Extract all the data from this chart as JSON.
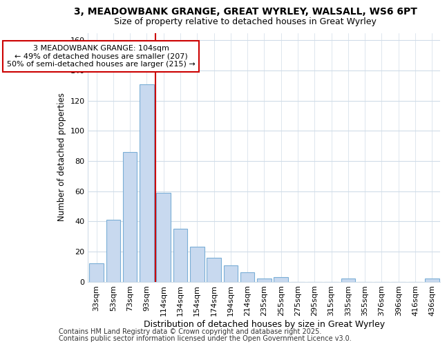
{
  "title": "3, MEADOWBANK GRANGE, GREAT WYRLEY, WALSALL, WS6 6PT",
  "subtitle": "Size of property relative to detached houses in Great Wyrley",
  "xlabel": "Distribution of detached houses by size in Great Wyrley",
  "ylabel": "Number of detached properties",
  "categories": [
    "33sqm",
    "53sqm",
    "73sqm",
    "93sqm",
    "114sqm",
    "134sqm",
    "154sqm",
    "174sqm",
    "194sqm",
    "214sqm",
    "235sqm",
    "255sqm",
    "275sqm",
    "295sqm",
    "315sqm",
    "335sqm",
    "355sqm",
    "376sqm",
    "396sqm",
    "416sqm",
    "436sqm"
  ],
  "values": [
    12,
    41,
    86,
    131,
    59,
    35,
    23,
    16,
    11,
    6,
    2,
    3,
    0,
    0,
    0,
    2,
    0,
    0,
    0,
    0,
    2
  ],
  "bar_color": "#c8d9ef",
  "bar_edge_color": "#7aaed6",
  "vline_color": "#cc0000",
  "vline_position": 3.5,
  "annotation_text": "3 MEADOWBANK GRANGE: 104sqm\n← 49% of detached houses are smaller (207)\n50% of semi-detached houses are larger (215) →",
  "annotation_box_edge_color": "#cc0000",
  "ylim": [
    0,
    165
  ],
  "yticks": [
    0,
    20,
    40,
    60,
    80,
    100,
    120,
    140,
    160
  ],
  "footer1": "Contains HM Land Registry data © Crown copyright and database right 2025.",
  "footer2": "Contains public sector information licensed under the Open Government Licence v3.0.",
  "background_color": "#ffffff",
  "grid_color": "#d0dce8",
  "title_fontsize": 10,
  "subtitle_fontsize": 9,
  "xlabel_fontsize": 9,
  "ylabel_fontsize": 8.5,
  "tick_fontsize": 8,
  "annotation_fontsize": 8,
  "footer_fontsize": 7
}
